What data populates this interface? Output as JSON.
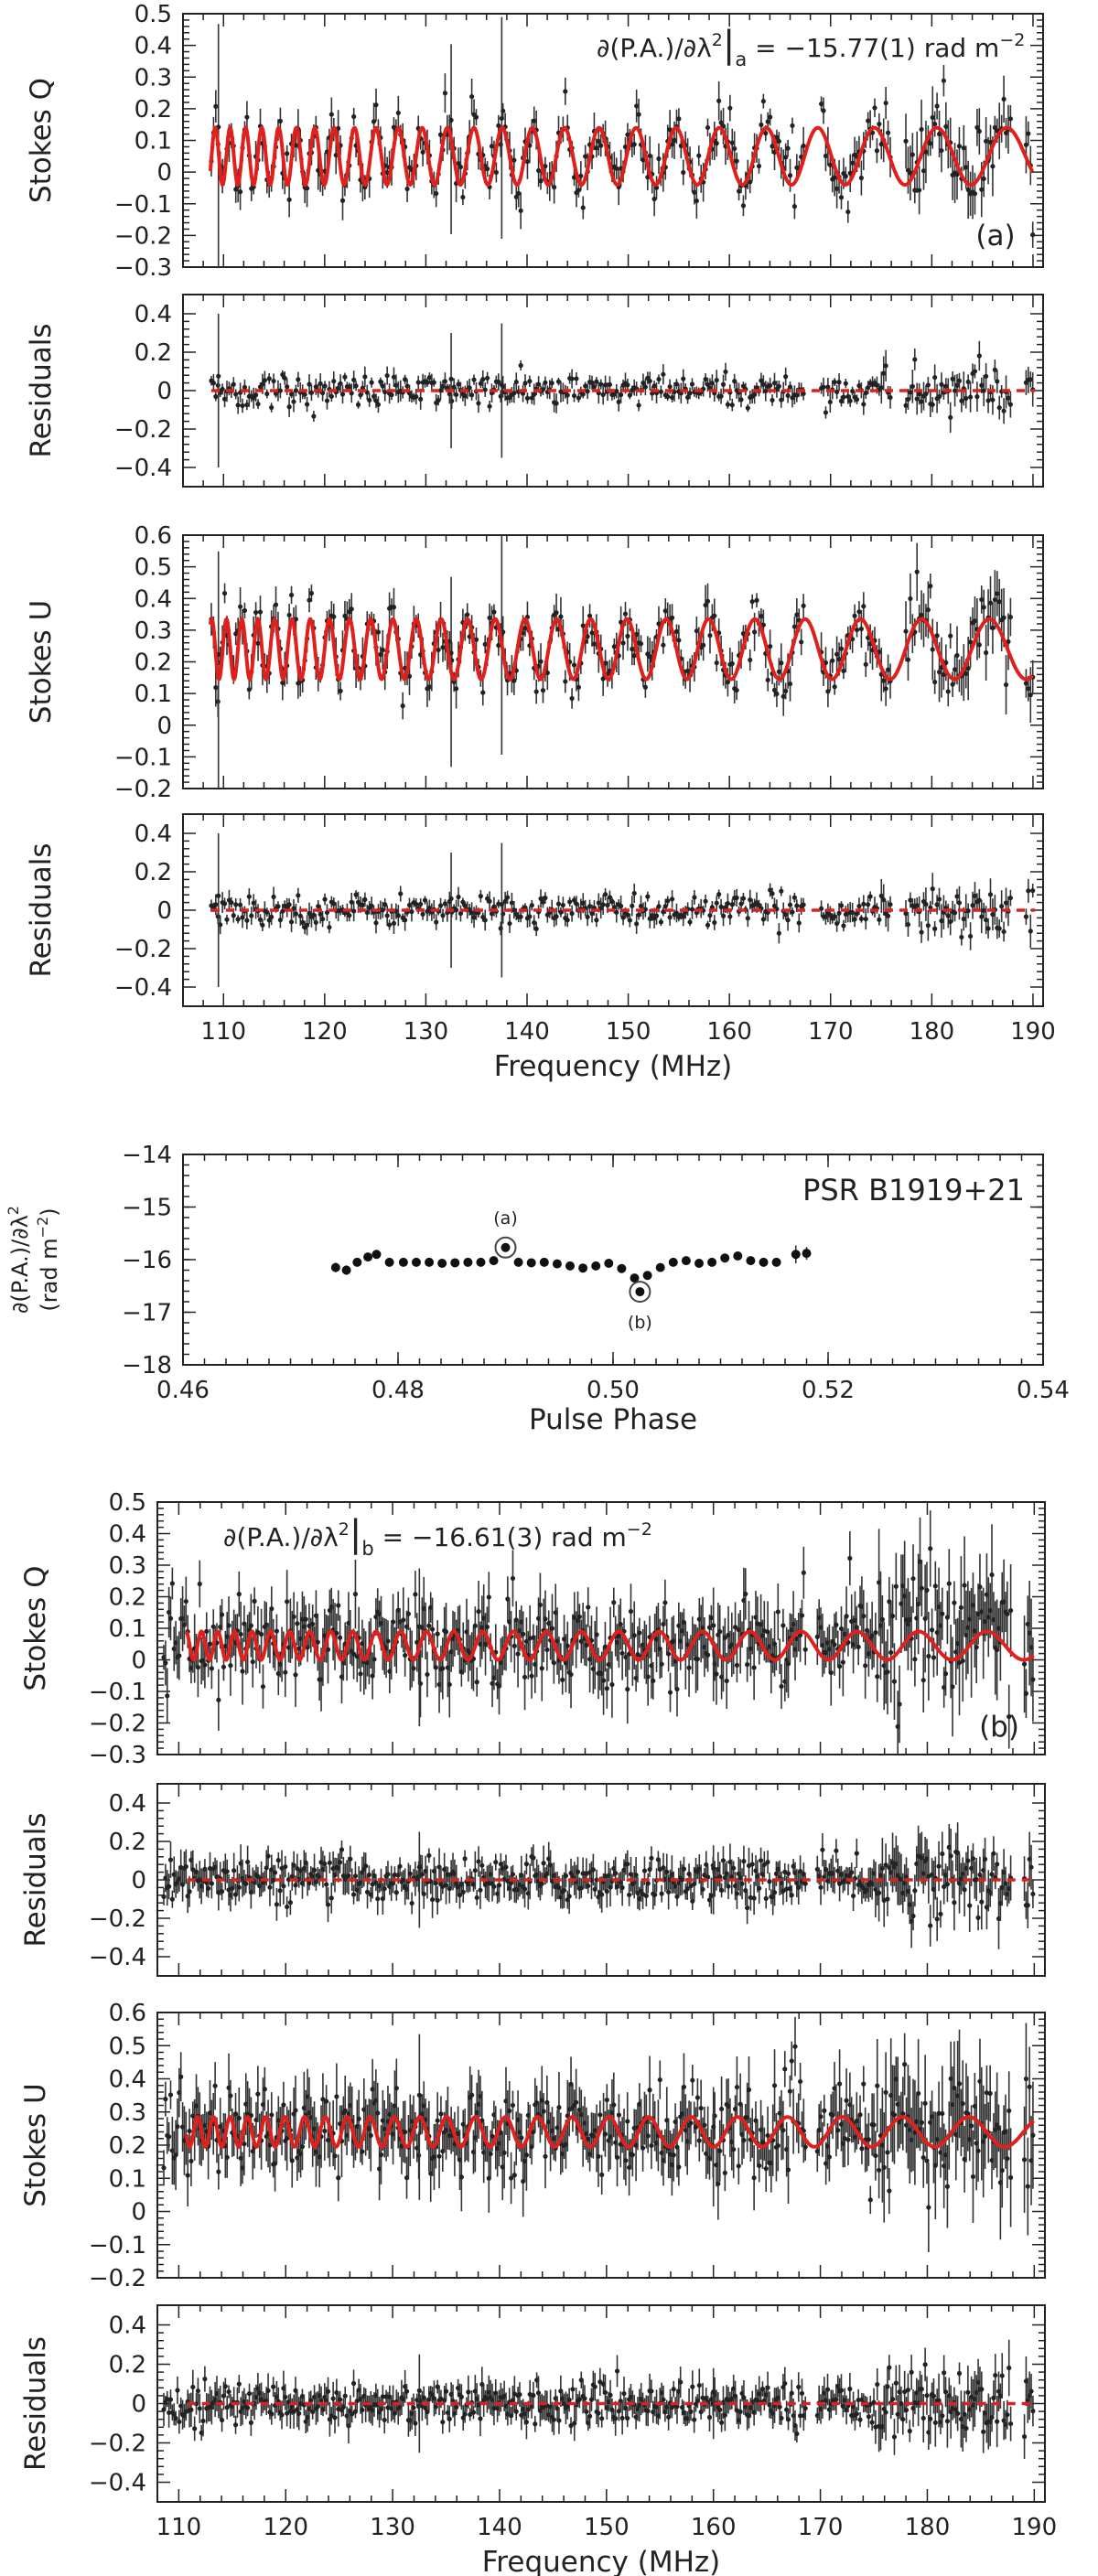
{
  "chart_data": [
    {
      "id": "a_stokes_q",
      "type": "scatter",
      "ylabel": "Stokes Q",
      "ylim": [
        -0.3,
        0.5
      ],
      "xlim": [
        106,
        191
      ],
      "yticks": [
        "−0.3",
        "−0.2",
        "−0.1",
        "0",
        "0.1",
        "0.2",
        "0.3",
        "0.4",
        "0.5"
      ],
      "ytick_values": [
        -0.3,
        -0.2,
        -0.1,
        0,
        0.1,
        0.2,
        0.3,
        0.4,
        0.5
      ],
      "annotation": "∂(P.A.)/∂λ²|a = −15.77(1) rad m⁻²",
      "annotation_parts": {
        "lhs": "∂(P.A.)/∂λ",
        "sup": "2",
        "sub": "a",
        "rhs": " = −15.77(1)  rad  m",
        "unit_sup": "−2"
      },
      "panel_label": "(a)",
      "model": {
        "center": 0.05,
        "amplitude": 0.09,
        "rm": -15.77,
        "phase": 0.6
      },
      "series": [
        {
          "name": "data",
          "kind": "scatter+errorbar",
          "noise": 0.045,
          "trend": [
            [
              108,
              0.06
            ],
            [
              150,
              0.05
            ],
            [
              185,
              0.09
            ]
          ]
        }
      ]
    },
    {
      "id": "a_resid_q",
      "type": "scatter",
      "ylabel": "Residuals",
      "ylim": [
        -0.5,
        0.5
      ],
      "xlim": [
        106,
        191
      ],
      "yticks": [
        "−0.4",
        "−0.2",
        "0",
        "0.2",
        "0.4"
      ],
      "ytick_values": [
        -0.4,
        -0.2,
        0,
        0.2,
        0.4
      ],
      "zero_line": true,
      "series": [
        {
          "name": "residuals",
          "kind": "scatter+errorbar",
          "noise": 0.04
        }
      ]
    },
    {
      "id": "a_stokes_u",
      "type": "scatter",
      "ylabel": "Stokes U",
      "ylim": [
        -0.2,
        0.6
      ],
      "xlim": [
        106,
        191
      ],
      "yticks": [
        "−0.2",
        "−0.1",
        "0",
        "0.1",
        "0.2",
        "0.3",
        "0.4",
        "0.5",
        "0.6"
      ],
      "ytick_values": [
        -0.2,
        -0.1,
        0,
        0.1,
        0.2,
        0.3,
        0.4,
        0.5,
        0.6
      ],
      "model": {
        "center": 0.24,
        "amplitude": 0.095,
        "rm": -15.77,
        "phase": 2.1
      },
      "series": [
        {
          "name": "data",
          "kind": "scatter+errorbar",
          "noise": 0.045
        }
      ]
    },
    {
      "id": "a_resid_u",
      "type": "scatter",
      "ylabel": "Residuals",
      "ylim": [
        -0.5,
        0.5
      ],
      "xlim": [
        106,
        191
      ],
      "yticks": [
        "−0.4",
        "−0.2",
        "0",
        "0.2",
        "0.4"
      ],
      "ytick_values": [
        -0.4,
        -0.2,
        0,
        0.2,
        0.4
      ],
      "zero_line": true,
      "xticks": [
        "110",
        "120",
        "130",
        "140",
        "150",
        "160",
        "170",
        "180",
        "190"
      ],
      "xtick_values": [
        110,
        120,
        130,
        140,
        150,
        160,
        170,
        180,
        190
      ],
      "xlabel": "Frequency (MHz)",
      "series": [
        {
          "name": "residuals",
          "kind": "scatter+errorbar",
          "noise": 0.04
        }
      ]
    },
    {
      "id": "rm_vs_phase",
      "type": "scatter",
      "title": "PSR B1919+21",
      "xlabel": "Pulse Phase",
      "ylabel": "∂(P.A.)/∂λ²",
      "ylabel_line1": "∂(P.A.)/∂λ",
      "ylabel_line1_sup": "2",
      "ylabel_line2": "(rad m",
      "ylabel_line2_sup": "−2",
      "ylabel_line2_end": ")",
      "xlim": [
        0.46,
        0.54
      ],
      "ylim": [
        -18,
        -14
      ],
      "xticks": [
        "0.46",
        "0.48",
        "0.50",
        "0.52",
        "0.54"
      ],
      "xtick_values": [
        0.46,
        0.48,
        0.5,
        0.52,
        0.54
      ],
      "yticks": [
        "−18",
        "−17",
        "−16",
        "−15",
        "−14"
      ],
      "ytick_values": [
        -18,
        -17,
        -16,
        -15,
        -14
      ],
      "x": [
        0.4742,
        0.4752,
        0.4762,
        0.4772,
        0.478,
        0.4792,
        0.4805,
        0.4817,
        0.4829,
        0.4841,
        0.4853,
        0.4865,
        0.4877,
        0.4889,
        0.49,
        0.4912,
        0.4924,
        0.4936,
        0.4948,
        0.496,
        0.4972,
        0.4984,
        0.4996,
        0.5008,
        0.502,
        0.5025,
        0.5032,
        0.5044,
        0.5056,
        0.5068,
        0.508,
        0.5092,
        0.5104,
        0.5116,
        0.5128,
        0.514,
        0.5152,
        0.517,
        0.518
      ],
      "y": [
        -16.15,
        -16.2,
        -16.05,
        -15.95,
        -15.9,
        -16.05,
        -16.05,
        -16.05,
        -16.05,
        -16.07,
        -16.06,
        -16.05,
        -16.05,
        -16.02,
        -15.77,
        -16.05,
        -16.06,
        -16.05,
        -16.08,
        -16.12,
        -16.16,
        -16.12,
        -16.07,
        -16.17,
        -16.35,
        -16.61,
        -16.3,
        -16.15,
        -16.05,
        -16.02,
        -16.07,
        -16.05,
        -15.97,
        -15.93,
        -16.02,
        -16.05,
        -16.05,
        -15.9,
        -15.88
      ],
      "yerr": [
        0.09,
        0.09,
        0.07,
        0.06,
        0.06,
        0.04,
        0.04,
        0.03,
        0.03,
        0.03,
        0.03,
        0.03,
        0.03,
        0.03,
        0.03,
        0.03,
        0.03,
        0.03,
        0.03,
        0.03,
        0.03,
        0.03,
        0.03,
        0.04,
        0.04,
        0.04,
        0.04,
        0.04,
        0.04,
        0.04,
        0.04,
        0.04,
        0.04,
        0.04,
        0.04,
        0.04,
        0.04,
        0.17,
        0.12
      ],
      "highlight_a": {
        "label": "(a)",
        "x": 0.49,
        "y": -15.77
      },
      "highlight_b": {
        "label": "(b)",
        "x": 0.5025,
        "y": -16.61
      }
    },
    {
      "id": "b_stokes_q",
      "type": "scatter",
      "ylabel": "Stokes Q",
      "ylim": [
        -0.3,
        0.5
      ],
      "xlim": [
        108,
        191
      ],
      "yticks": [
        "−0.3",
        "−0.2",
        "−0.1",
        "0",
        "0.1",
        "0.2",
        "0.3",
        "0.4",
        "0.5"
      ],
      "ytick_values": [
        -0.3,
        -0.2,
        -0.1,
        0,
        0.1,
        0.2,
        0.3,
        0.4,
        0.5
      ],
      "annotation": "∂(P.A.)/∂λ²|b = −16.61(3) rad m⁻²",
      "annotation_parts": {
        "lhs": "∂(P.A.)/∂λ",
        "sup": "2",
        "sub": "b",
        "rhs": " = −16.61(3)  rad  m",
        "unit_sup": "−2"
      },
      "panel_label": "(b)",
      "model": {
        "center": 0.045,
        "amplitude": 0.045,
        "rm": -16.61,
        "phase": 0.3
      },
      "series": [
        {
          "name": "data",
          "kind": "scatter+errorbar",
          "noise": 0.06,
          "trend": [
            [
              109,
              0.06
            ],
            [
              150,
              0.05
            ],
            [
              185,
              0.12
            ]
          ]
        }
      ]
    },
    {
      "id": "b_resid_q",
      "type": "scatter",
      "ylabel": "Residuals",
      "ylim": [
        -0.5,
        0.5
      ],
      "xlim": [
        108,
        191
      ],
      "yticks": [
        "−0.4",
        "−0.2",
        "0",
        "0.2",
        "0.4"
      ],
      "ytick_values": [
        -0.4,
        -0.2,
        0,
        0.2,
        0.4
      ],
      "zero_line": true,
      "series": [
        {
          "name": "residuals",
          "kind": "scatter+errorbar",
          "noise": 0.055
        }
      ]
    },
    {
      "id": "b_stokes_u",
      "type": "scatter",
      "ylabel": "Stokes U",
      "ylim": [
        -0.2,
        0.6
      ],
      "xlim": [
        108,
        191
      ],
      "yticks": [
        "−0.2",
        "−0.1",
        "0",
        "0.1",
        "0.2",
        "0.3",
        "0.4",
        "0.5",
        "0.6"
      ],
      "ytick_values": [
        -0.2,
        -0.1,
        0,
        0.1,
        0.2,
        0.3,
        0.4,
        0.5,
        0.6
      ],
      "model": {
        "center": 0.24,
        "amplitude": 0.045,
        "rm": -16.61,
        "phase": 1.9
      },
      "series": [
        {
          "name": "data",
          "kind": "scatter+errorbar",
          "noise": 0.06
        }
      ]
    },
    {
      "id": "b_resid_u",
      "type": "scatter",
      "ylabel": "Residuals",
      "ylim": [
        -0.5,
        0.5
      ],
      "xlim": [
        108,
        191
      ],
      "yticks": [
        "−0.4",
        "−0.2",
        "0",
        "0.2",
        "0.4"
      ],
      "ytick_values": [
        -0.4,
        -0.2,
        0,
        0.2,
        0.4
      ],
      "zero_line": true,
      "xticks": [
        "110",
        "120",
        "130",
        "140",
        "150",
        "160",
        "170",
        "180",
        "190"
      ],
      "xtick_values": [
        110,
        120,
        130,
        140,
        150,
        160,
        170,
        180,
        190
      ],
      "xlabel": "Frequency (MHz)",
      "series": [
        {
          "name": "residuals",
          "kind": "scatter+errorbar",
          "noise": 0.05
        }
      ]
    }
  ]
}
